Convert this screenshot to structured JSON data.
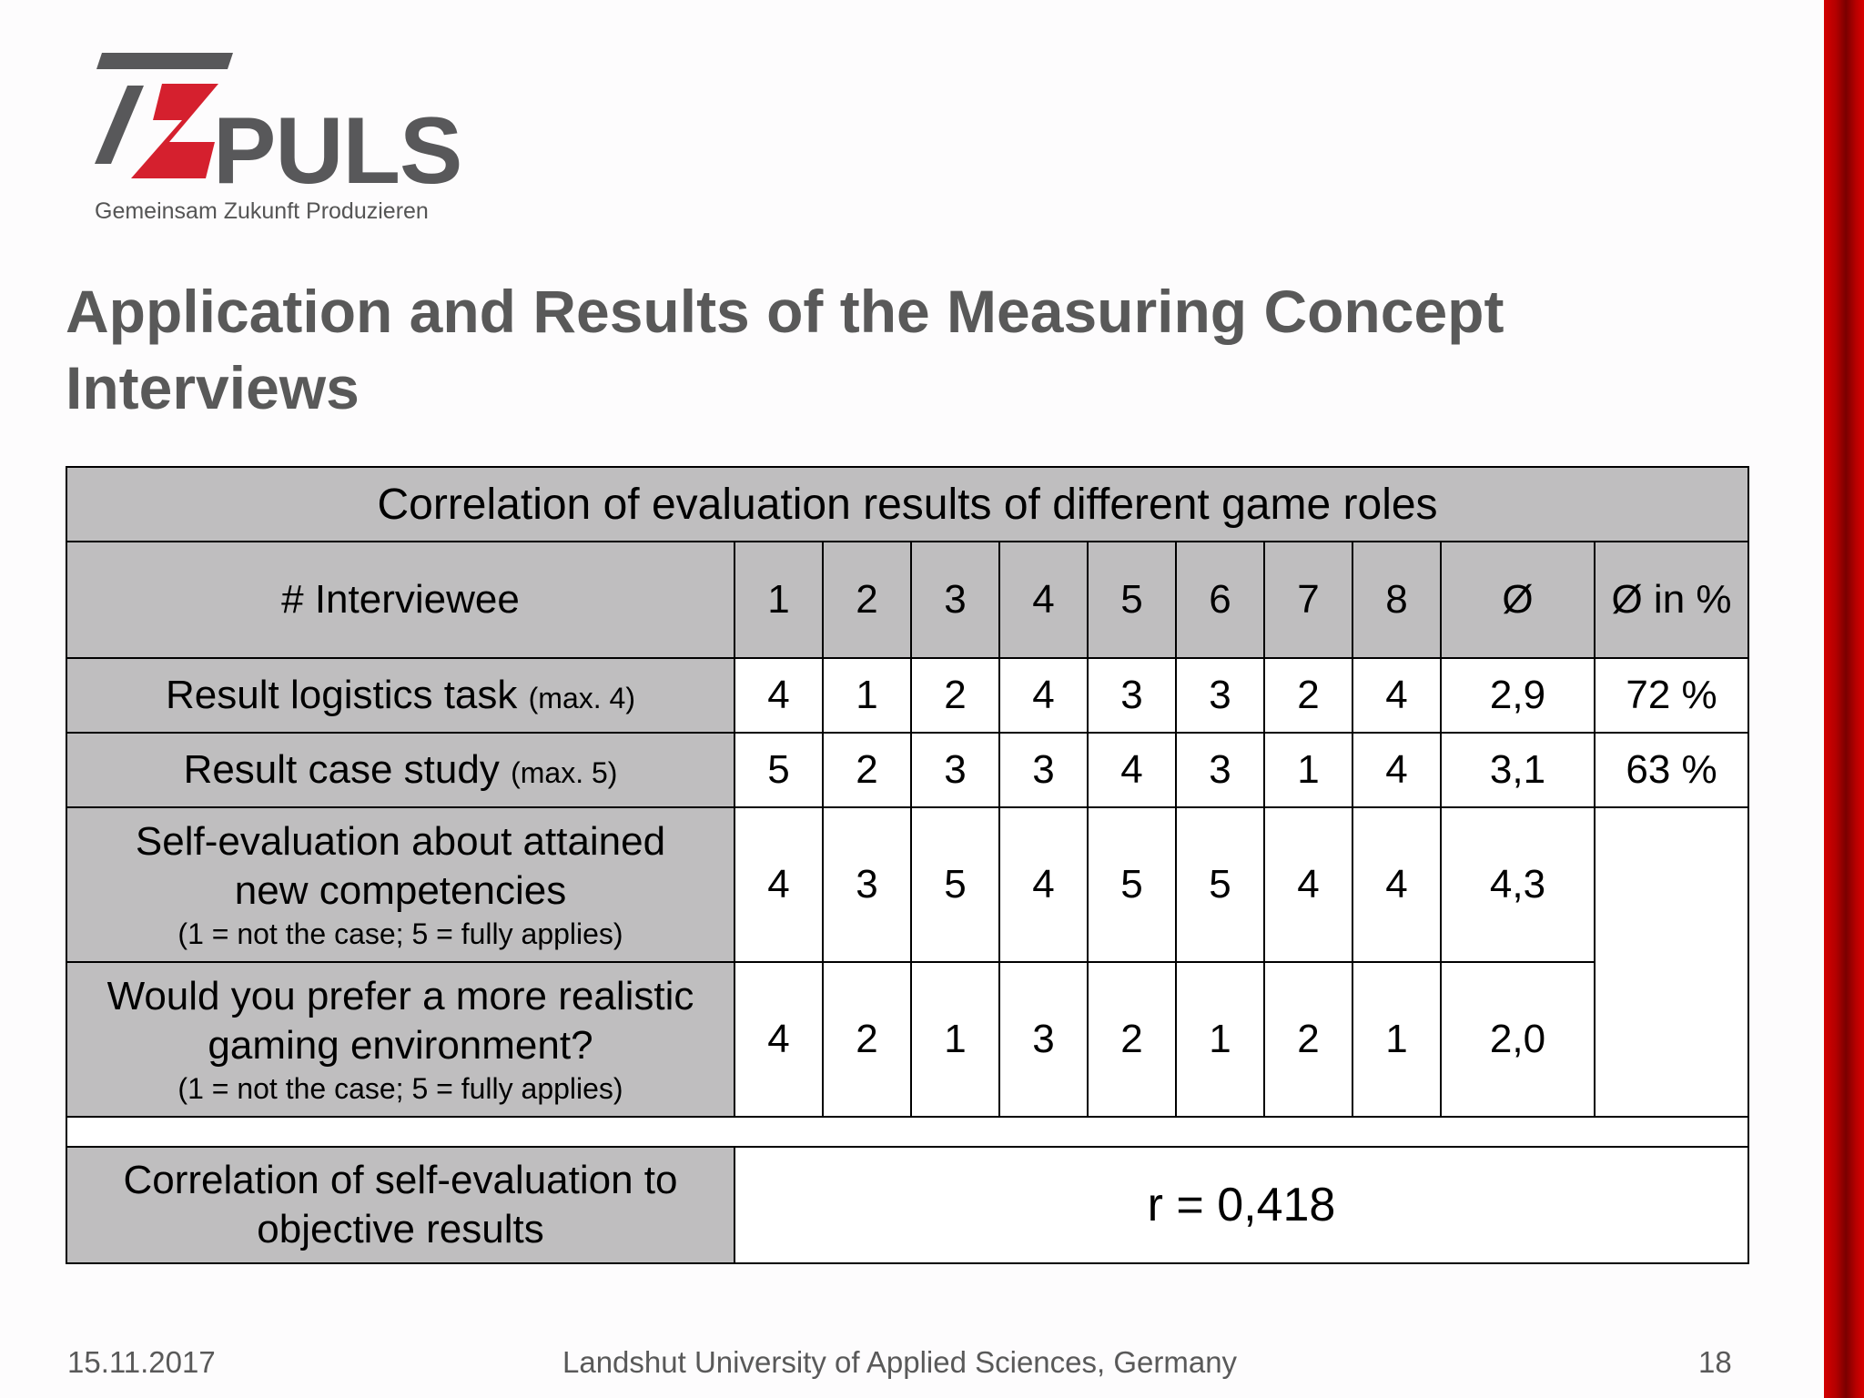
{
  "logo": {
    "word": "PULS",
    "tagline": "Gemeinsam Zukunft Produzieren",
    "colors": {
      "grey": "#58585a",
      "red": "#d5202e"
    }
  },
  "title": {
    "line1": "Application and Results of the Measuring Concept",
    "line2": "Interviews"
  },
  "table": {
    "caption": "Correlation of evaluation results of different game roles",
    "header": {
      "label": "# Interviewee",
      "columns": [
        "1",
        "2",
        "3",
        "4",
        "5",
        "6",
        "7",
        "8"
      ],
      "avg": "Ø",
      "avg_pct": "Ø in %"
    },
    "rows": [
      {
        "label": "Result logistics task",
        "qualifier": "(max. 4)",
        "values": [
          "4",
          "1",
          "2",
          "4",
          "3",
          "3",
          "2",
          "4"
        ],
        "avg": "2,9",
        "pct": "72 %"
      },
      {
        "label": "Result case study",
        "qualifier": "(max. 5)",
        "values": [
          "5",
          "2",
          "3",
          "3",
          "4",
          "3",
          "1",
          "4"
        ],
        "avg": "3,1",
        "pct": "63 %"
      },
      {
        "label_line1": "Self-evaluation about attained",
        "label_line2": "new competencies",
        "note": "(1 = not the case; 5 = fully applies)",
        "values": [
          "4",
          "3",
          "5",
          "4",
          "5",
          "5",
          "4",
          "4"
        ],
        "avg": "4,3"
      },
      {
        "label_line1": "Would you prefer a more realistic",
        "label_line2": "gaming environment?",
        "note": "(1 = not the case; 5 = fully applies)",
        "values": [
          "4",
          "2",
          "1",
          "3",
          "2",
          "1",
          "2",
          "1"
        ],
        "avg": "2,0"
      }
    ],
    "correlation": {
      "label_line1": "Correlation of self-evaluation to",
      "label_line2": "objective results",
      "value": "r = 0,418"
    }
  },
  "footer": {
    "date": "15.11.2017",
    "institution": "Landshut University of Applied Sciences, Germany",
    "page": "18"
  },
  "colors": {
    "accent_bar": "#c00000",
    "table_header_fill": "#bfbebf",
    "title_text": "#595959"
  }
}
